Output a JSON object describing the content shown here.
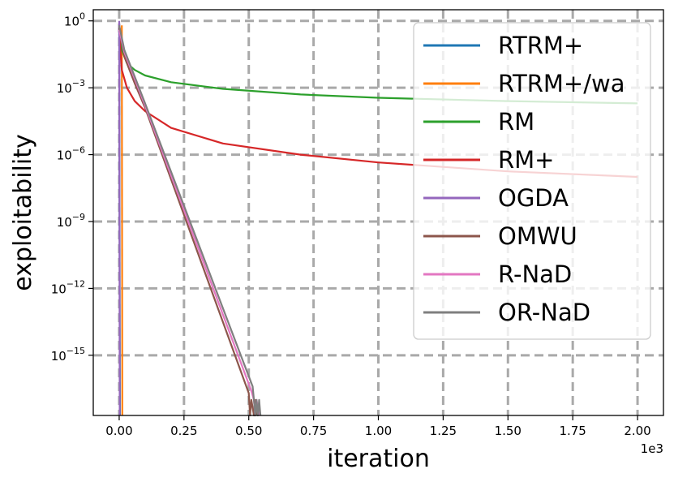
{
  "chart_data": {
    "type": "line",
    "xlabel": "iteration",
    "ylabel": "exploitability",
    "x_offset_label": "1e3",
    "x_scale_factor": 1000,
    "xlim": [
      -100,
      2100
    ],
    "ylim_exponent": [
      -17.7,
      0.5
    ],
    "y_scale": "log",
    "x_ticks": [
      0,
      250,
      500,
      750,
      1000,
      1250,
      1500,
      1750,
      2000
    ],
    "x_tick_labels": [
      "0.00",
      "0.25",
      "0.50",
      "0.75",
      "1.00",
      "1.25",
      "1.50",
      "1.75",
      "2.00"
    ],
    "y_ticks": [
      {
        "exp": 0,
        "base": "10",
        "sup": "0"
      },
      {
        "exp": -3,
        "base": "10",
        "sup": "−3"
      },
      {
        "exp": -6,
        "base": "10",
        "sup": "−6"
      },
      {
        "exp": -9,
        "base": "10",
        "sup": "−9"
      },
      {
        "exp": -12,
        "base": "10",
        "sup": "−12"
      },
      {
        "exp": -15,
        "base": "10",
        "sup": "−15"
      }
    ],
    "grid": true,
    "legend_position": "top-right",
    "series": [
      {
        "name": "RTRM+",
        "color": "#1f77b4",
        "log10_points": [
          [
            0,
            -0.3
          ],
          [
            3,
            -17.7
          ]
        ]
      },
      {
        "name": "RTRM+/wa",
        "color": "#ff7f0e",
        "log10_points": [
          [
            10,
            -0.2
          ],
          [
            12,
            -17.7
          ]
        ]
      },
      {
        "name": "RM",
        "color": "#2ca02c",
        "log10_points": [
          [
            0,
            -0.8
          ],
          [
            10,
            -1.3
          ],
          [
            30,
            -1.9
          ],
          [
            60,
            -2.2
          ],
          [
            100,
            -2.45
          ],
          [
            200,
            -2.75
          ],
          [
            400,
            -3.05
          ],
          [
            700,
            -3.3
          ],
          [
            1000,
            -3.45
          ],
          [
            1500,
            -3.6
          ],
          [
            2000,
            -3.7
          ]
        ]
      },
      {
        "name": "RM+",
        "color": "#d62728",
        "log10_points": [
          [
            0,
            -0.6
          ],
          [
            10,
            -2.2
          ],
          [
            30,
            -3.0
          ],
          [
            60,
            -3.6
          ],
          [
            100,
            -4.05
          ],
          [
            200,
            -4.8
          ],
          [
            400,
            -5.5
          ],
          [
            700,
            -6.0
          ],
          [
            1000,
            -6.35
          ],
          [
            1500,
            -6.75
          ],
          [
            2000,
            -7.0
          ]
        ]
      },
      {
        "name": "OGDA",
        "color": "#9467bd",
        "log10_points": [
          [
            0,
            0.0
          ],
          [
            2,
            -17.7
          ]
        ]
      },
      {
        "name": "OMWU",
        "color": "#8c564b",
        "log10_points": [
          [
            0,
            -0.3
          ],
          [
            20,
            -1.6
          ],
          [
            60,
            -2.8
          ],
          [
            100,
            -3.9
          ],
          [
            500,
            -16.7
          ],
          [
            505,
            -17.7
          ],
          [
            510,
            -17.0
          ],
          [
            520,
            -17.7
          ],
          [
            525,
            -17.0
          ],
          [
            530,
            -17.7
          ]
        ]
      },
      {
        "name": "R-NaD",
        "color": "#e377c2",
        "log10_points": [
          [
            0,
            -0.4
          ],
          [
            20,
            -1.4
          ],
          [
            60,
            -2.6
          ],
          [
            100,
            -3.8
          ],
          [
            510,
            -16.6
          ],
          [
            520,
            -17.0
          ],
          [
            525,
            -17.7
          ],
          [
            530,
            -17.0
          ],
          [
            540,
            -17.7
          ]
        ]
      },
      {
        "name": "OR-NaD",
        "color": "#7f7f7f",
        "log10_points": [
          [
            0,
            -0.2
          ],
          [
            20,
            -1.3
          ],
          [
            60,
            -2.5
          ],
          [
            100,
            -3.7
          ],
          [
            515,
            -16.4
          ],
          [
            520,
            -17.0
          ],
          [
            525,
            -17.7
          ],
          [
            530,
            -17.0
          ],
          [
            535,
            -17.7
          ],
          [
            540,
            -17.0
          ],
          [
            545,
            -17.7
          ]
        ]
      }
    ]
  }
}
